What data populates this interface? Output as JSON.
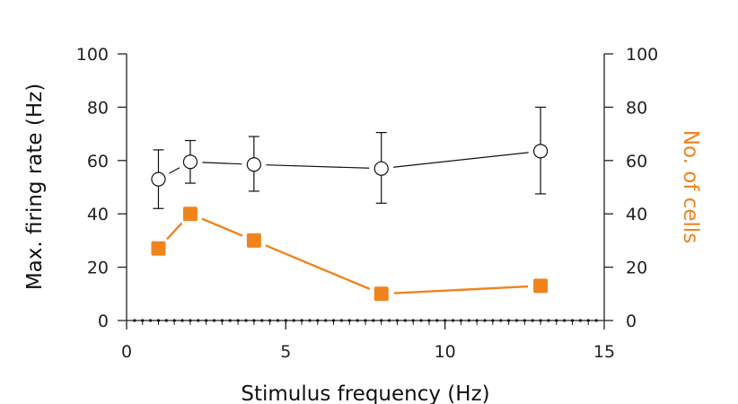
{
  "chart_data": {
    "type": "line",
    "title": "",
    "xlabel": "Stimulus frequency (Hz)",
    "ylabel_left": "Max. firing rate (Hz)",
    "ylabel_right": "No. of cells",
    "xlim": [
      0,
      15
    ],
    "ylim_left": [
      0,
      100
    ],
    "ylim_right": [
      0,
      100
    ],
    "x_ticks": [
      "0",
      "5",
      "10",
      "15"
    ],
    "y_ticks_left": [
      "0",
      "20",
      "40",
      "60",
      "80",
      "100"
    ],
    "y_ticks_right": [
      "0",
      "20",
      "40",
      "60",
      "80",
      "100"
    ],
    "grid": false,
    "legend": "none",
    "series": [
      {
        "axis": "left",
        "marker": "open-circle",
        "color": "#111111",
        "x": [
          1,
          2,
          4,
          8,
          13
        ],
        "y": [
          53,
          59.5,
          58.5,
          57,
          63.5
        ],
        "err_low": [
          42,
          51.5,
          48.5,
          44,
          47.5
        ],
        "err_high": [
          64,
          67.5,
          69,
          70.5,
          80
        ]
      },
      {
        "axis": "right",
        "marker": "filled-square",
        "color": "#f0841c",
        "x": [
          1,
          2,
          4,
          8,
          13
        ],
        "y": [
          27,
          40,
          30,
          10,
          13
        ]
      }
    ]
  }
}
